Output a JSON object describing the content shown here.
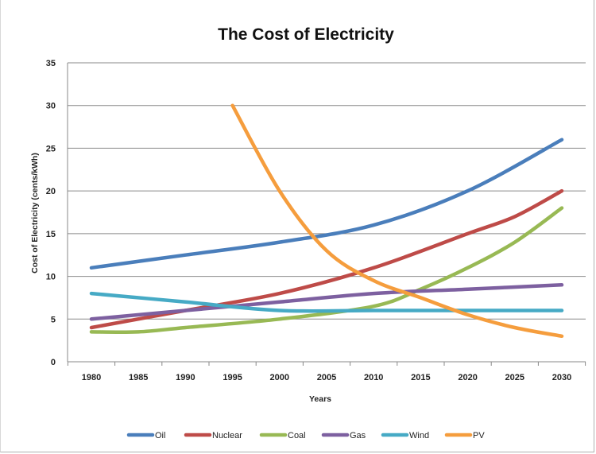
{
  "chart_data": {
    "type": "line",
    "title": "The Cost of Electricity",
    "xlabel": "Years",
    "ylabel": "Cost of Electricity (cents/kWh)",
    "xlim": [
      1980,
      2030
    ],
    "ylim": [
      0,
      35
    ],
    "x_ticks": [
      1980,
      1985,
      1990,
      1995,
      2000,
      2005,
      2010,
      2015,
      2020,
      2025,
      2030
    ],
    "y_ticks": [
      0,
      5,
      10,
      15,
      20,
      25,
      30,
      35
    ],
    "grid": "horizontal",
    "legend": "bottom",
    "series": [
      {
        "name": "Oil",
        "color": "#4a7ebb",
        "points": [
          [
            1980,
            11
          ],
          [
            1990,
            12.5
          ],
          [
            2000,
            14
          ],
          [
            2010,
            16
          ],
          [
            2020,
            20
          ],
          [
            2030,
            26
          ]
        ]
      },
      {
        "name": "Nuclear",
        "color": "#be4b48",
        "points": [
          [
            1980,
            4
          ],
          [
            1990,
            6
          ],
          [
            2000,
            8
          ],
          [
            2010,
            11
          ],
          [
            2020,
            15
          ],
          [
            2025,
            17
          ],
          [
            2030,
            20
          ]
        ]
      },
      {
        "name": "Coal",
        "color": "#98b954",
        "points": [
          [
            1980,
            3.5
          ],
          [
            1985,
            3.5
          ],
          [
            1990,
            4
          ],
          [
            2000,
            5
          ],
          [
            2010,
            6.5
          ],
          [
            2015,
            8.5
          ],
          [
            2020,
            11
          ],
          [
            2025,
            14
          ],
          [
            2030,
            18
          ]
        ]
      },
      {
        "name": "Gas",
        "color": "#7d60a0",
        "points": [
          [
            1980,
            5
          ],
          [
            1990,
            6
          ],
          [
            2000,
            7
          ],
          [
            2010,
            8
          ],
          [
            2020,
            8.5
          ],
          [
            2030,
            9
          ]
        ]
      },
      {
        "name": "Wind",
        "color": "#46aac5",
        "points": [
          [
            1980,
            8
          ],
          [
            1990,
            7
          ],
          [
            2000,
            6
          ],
          [
            2010,
            6
          ],
          [
            2020,
            6
          ],
          [
            2030,
            6
          ]
        ]
      },
      {
        "name": "PV",
        "color": "#f59d3d",
        "points": [
          [
            1995,
            30
          ],
          [
            2000,
            20
          ],
          [
            2005,
            13
          ],
          [
            2010,
            9.5
          ],
          [
            2015,
            7.5
          ],
          [
            2020,
            5.5
          ],
          [
            2025,
            4
          ],
          [
            2030,
            3
          ]
        ]
      }
    ]
  }
}
